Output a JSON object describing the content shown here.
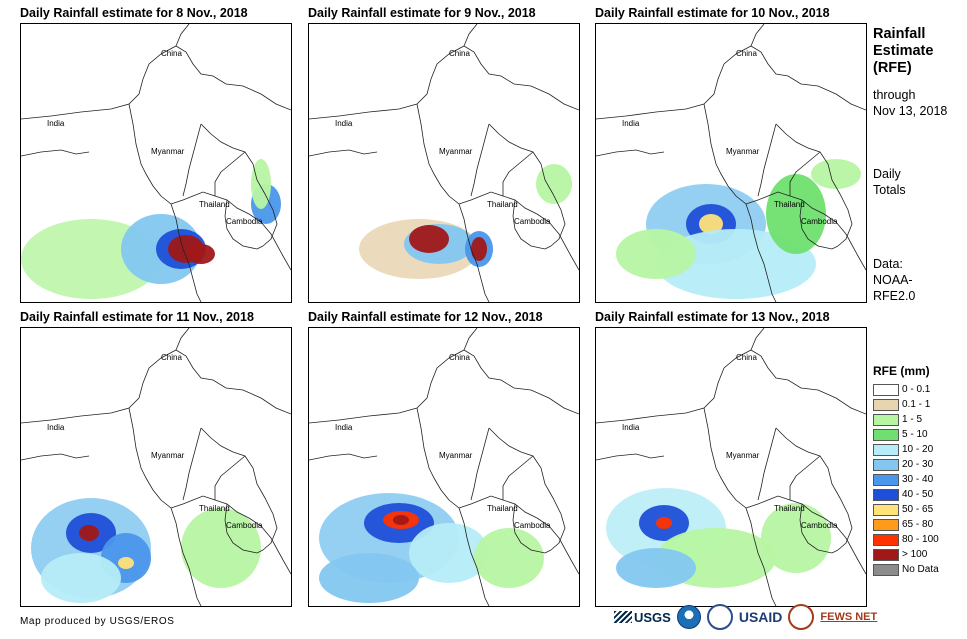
{
  "panels": [
    {
      "title": "Daily Rainfall estimate for 8 Nov., 2018",
      "labels": {
        "china": "China",
        "india": "India",
        "myanmar": "Myanmar",
        "thailand": "Thailand",
        "cambodia": "Cambodia"
      }
    },
    {
      "title": "Daily Rainfall estimate for 9 Nov., 2018",
      "labels": {
        "china": "China",
        "india": "India",
        "myanmar": "Myanmar",
        "thailand": "Thailand",
        "cambodia": "Cambodia"
      }
    },
    {
      "title": "Daily Rainfall estimate for 10 Nov., 2018",
      "labels": {
        "china": "China",
        "india": "India",
        "myanmar": "Myanmar",
        "thailand": "Thailand",
        "cambodia": "Cambodia"
      }
    },
    {
      "title": "Daily Rainfall estimate for 11 Nov., 2018",
      "labels": {
        "china": "China",
        "india": "India",
        "myanmar": "Myanmar",
        "thailand": "Thailand",
        "cambodia": "Cambodia"
      }
    },
    {
      "title": "Daily Rainfall estimate for 12 Nov., 2018",
      "labels": {
        "china": "China",
        "india": "India",
        "myanmar": "Myanmar",
        "thailand": "Thailand",
        "cambodia": "Cambodia"
      }
    },
    {
      "title": "Daily Rainfall estimate for 13 Nov., 2018",
      "labels": {
        "china": "China",
        "india": "India",
        "myanmar": "Myanmar",
        "thailand": "Thailand",
        "cambodia": "Cambodia"
      }
    }
  ],
  "sidebar": {
    "title_line1": "Rainfall",
    "title_line2": "Estimate",
    "title_line3": "(RFE)",
    "through_line1": "through",
    "through_line2": "Nov 13, 2018",
    "daily_line1": "Daily",
    "daily_line2": "Totals",
    "data_line1": "Data:",
    "data_line2": "NOAA-",
    "data_line3": "RFE2.0"
  },
  "legend": {
    "title": "RFE (mm)",
    "items": [
      {
        "label": "0 - 0.1",
        "color": "#ffffff"
      },
      {
        "label": "0.1 - 1",
        "color": "#e8d5b0"
      },
      {
        "label": "1 - 5",
        "color": "#b7f5a3"
      },
      {
        "label": "5 - 10",
        "color": "#6fe06f"
      },
      {
        "label": "10 - 20",
        "color": "#b5ecf7"
      },
      {
        "label": "20 - 30",
        "color": "#83c7f0"
      },
      {
        "label": "30 - 40",
        "color": "#4a96ea"
      },
      {
        "label": "40 - 50",
        "color": "#1f4fd8"
      },
      {
        "label": "50 - 65",
        "color": "#ffe27a"
      },
      {
        "label": "65 - 80",
        "color": "#ff9a1a"
      },
      {
        "label": "80 - 100",
        "color": "#ff3300"
      },
      {
        "label": "> 100",
        "color": "#a01818"
      },
      {
        "label": "No Data",
        "color": "#8c8c8c"
      }
    ]
  },
  "footer": {
    "credit": "Map produced by USGS/EROS"
  },
  "logos": {
    "usgs": "USGS",
    "usaid": "USAID",
    "fews": "FEWS NET"
  }
}
